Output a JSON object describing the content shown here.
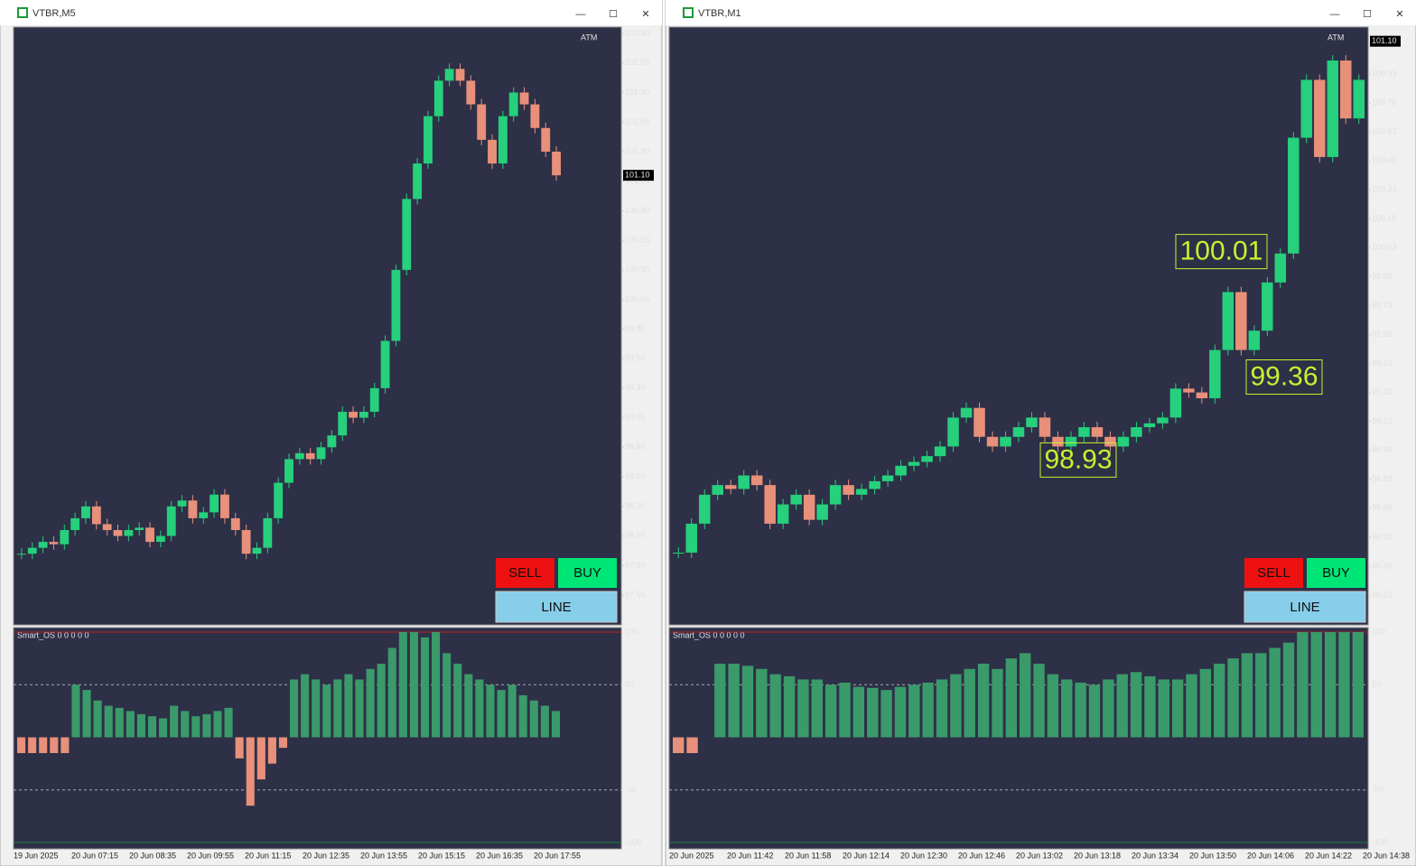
{
  "windows": [
    {
      "title": "VTBR,M5",
      "badge": "ATM",
      "price_ticks": [
        {
          "value": 102.3,
          "label": "102.30"
        },
        {
          "value": 102.05,
          "label": "102.05"
        },
        {
          "value": 101.8,
          "label": "101.80"
        },
        {
          "value": 101.55,
          "label": "101.55"
        },
        {
          "value": 101.3,
          "label": "101.30"
        },
        {
          "value": 101.05,
          "label": "101.05"
        },
        {
          "value": 100.8,
          "label": "100.80"
        },
        {
          "value": 100.55,
          "label": "100.55"
        },
        {
          "value": 100.3,
          "label": "100.30"
        },
        {
          "value": 100.05,
          "label": "100.05"
        },
        {
          "value": 99.8,
          "label": "99.80"
        },
        {
          "value": 99.55,
          "label": "99.55"
        },
        {
          "value": 99.3,
          "label": "99.30"
        },
        {
          "value": 99.05,
          "label": "99.05"
        },
        {
          "value": 98.8,
          "label": "98.80"
        },
        {
          "value": 98.55,
          "label": "98.55"
        },
        {
          "value": 98.3,
          "label": "98.30"
        },
        {
          "value": 98.05,
          "label": "98.05"
        },
        {
          "value": 97.8,
          "label": "97.80"
        },
        {
          "value": 97.55,
          "label": "97.55"
        }
      ],
      "current_price": {
        "value": 101.1,
        "label": "101.10"
      },
      "time_labels": [
        "19 Jun 2025",
        "20 Jun 07:15",
        "20 Jun 08:35",
        "20 Jun 09:55",
        "20 Jun 11:15",
        "20 Jun 12:35",
        "20 Jun 13:55",
        "20 Jun 15:15",
        "20 Jun 16:35",
        "20 Jun 17:55"
      ],
      "closes": [
        97.9,
        97.95,
        98.0,
        97.98,
        98.1,
        98.2,
        98.3,
        98.15,
        98.1,
        98.05,
        98.1,
        98.12,
        98.0,
        98.05,
        98.3,
        98.35,
        98.2,
        98.25,
        98.4,
        98.2,
        98.1,
        97.9,
        97.95,
        98.2,
        98.5,
        98.7,
        98.75,
        98.7,
        98.8,
        98.9,
        99.1,
        99.05,
        99.1,
        99.3,
        99.7,
        100.3,
        100.9,
        101.2,
        101.6,
        101.9,
        102.0,
        101.9,
        101.7,
        101.4,
        101.2,
        101.6,
        101.8,
        101.7,
        101.5,
        101.3,
        101.1
      ],
      "oscillator": {
        "name": "Smart_OS 0 0 0 0 0",
        "ticks": [
          100,
          50,
          -50,
          -100
        ],
        "values": [
          -15,
          -15,
          -15,
          -15,
          -15,
          50,
          45,
          35,
          30,
          28,
          25,
          22,
          20,
          18,
          30,
          25,
          20,
          22,
          25,
          28,
          -20,
          -65,
          -40,
          -25,
          -10,
          55,
          60,
          55,
          50,
          55,
          60,
          55,
          65,
          70,
          85,
          100,
          100,
          95,
          100,
          80,
          70,
          60,
          55,
          50,
          45,
          50,
          40,
          35,
          30,
          25
        ]
      },
      "buttons": {
        "sell": "SELL",
        "buy": "BUY",
        "line": "LINE"
      },
      "annotations": []
    },
    {
      "title": "VTBR,M1",
      "badge": "ATM",
      "price_ticks": [
        {
          "value": 100.93,
          "label": "100.93"
        },
        {
          "value": 100.78,
          "label": "100.78"
        },
        {
          "value": 100.63,
          "label": "100.63"
        },
        {
          "value": 100.48,
          "label": "100.48"
        },
        {
          "value": 100.33,
          "label": "100.33"
        },
        {
          "value": 100.18,
          "label": "100.18"
        },
        {
          "value": 100.03,
          "label": "100.03"
        },
        {
          "value": 99.88,
          "label": "99.88"
        },
        {
          "value": 99.73,
          "label": "99.73"
        },
        {
          "value": 99.58,
          "label": "99.58"
        },
        {
          "value": 99.43,
          "label": "99.43"
        },
        {
          "value": 99.28,
          "label": "99.28"
        },
        {
          "value": 99.13,
          "label": "99.13"
        },
        {
          "value": 98.98,
          "label": "98.98"
        },
        {
          "value": 98.83,
          "label": "98.83"
        },
        {
          "value": 98.68,
          "label": "98.68"
        },
        {
          "value": 98.53,
          "label": "98.53"
        },
        {
          "value": 98.38,
          "label": "98.38"
        },
        {
          "value": 98.23,
          "label": "98.23"
        }
      ],
      "current_price": {
        "value": 101.1,
        "label": "101.10"
      },
      "time_labels": [
        "20 Jun 2025",
        "20 Jun 11:42",
        "20 Jun 11:58",
        "20 Jun 12:14",
        "20 Jun 12:30",
        "20 Jun 12:46",
        "20 Jun 13:02",
        "20 Jun 13:18",
        "20 Jun 13:34",
        "20 Jun 13:50",
        "20 Jun 14:06",
        "20 Jun 14:22",
        "20 Jun 14:38"
      ],
      "closes": [
        98.45,
        98.6,
        98.75,
        98.8,
        98.78,
        98.85,
        98.8,
        98.6,
        98.7,
        98.75,
        98.62,
        98.7,
        98.8,
        98.75,
        98.78,
        98.82,
        98.85,
        98.9,
        98.92,
        98.95,
        99.0,
        99.15,
        99.2,
        99.05,
        99.0,
        99.05,
        99.1,
        99.15,
        99.05,
        99.0,
        99.05,
        99.1,
        99.05,
        99.0,
        99.05,
        99.1,
        99.12,
        99.15,
        99.3,
        99.28,
        99.25,
        99.5,
        99.8,
        99.5,
        99.6,
        99.85,
        100.0,
        100.6,
        100.9,
        100.5,
        101.0,
        100.7,
        100.9
      ],
      "oscillator": {
        "name": "Smart_OS 0 0 0 0 0",
        "ticks": [
          100,
          50,
          -50,
          -100
        ],
        "values": [
          -15,
          -15,
          0,
          70,
          70,
          68,
          65,
          60,
          58,
          55,
          55,
          50,
          52,
          48,
          47,
          45,
          48,
          50,
          52,
          55,
          60,
          65,
          70,
          65,
          75,
          80,
          70,
          60,
          55,
          52,
          50,
          55,
          60,
          62,
          58,
          55,
          55,
          60,
          65,
          70,
          75,
          80,
          80,
          85,
          90,
          100,
          100,
          100,
          100,
          100
        ]
      },
      "buttons": {
        "sell": "SELL",
        "buy": "BUY",
        "line": "LINE"
      },
      "annotations": [
        100.01,
        99.36,
        98.93
      ]
    }
  ]
}
